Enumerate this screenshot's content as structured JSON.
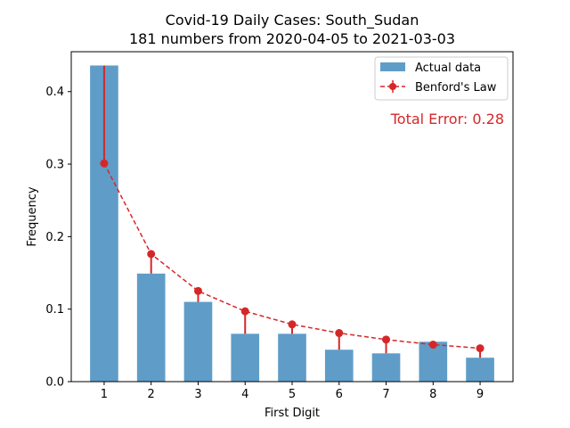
{
  "chart_data": {
    "type": "bar",
    "title_line1": "Covid-19 Daily Cases: South_Sudan",
    "title_line2": "181 numbers from 2020-04-05 to 2021-03-03",
    "xlabel": "First Digit",
    "ylabel": "Frequency",
    "categories": [
      "1",
      "2",
      "3",
      "4",
      "5",
      "6",
      "7",
      "8",
      "9"
    ],
    "series": [
      {
        "name": "Actual data",
        "type": "bar",
        "color": "#5f9dc8",
        "values": [
          0.436,
          0.149,
          0.11,
          0.066,
          0.066,
          0.044,
          0.039,
          0.055,
          0.033
        ]
      },
      {
        "name": "Benford's Law",
        "type": "line",
        "color": "#d62728",
        "values": [
          0.301,
          0.176,
          0.125,
          0.097,
          0.079,
          0.067,
          0.058,
          0.051,
          0.046
        ]
      }
    ],
    "ylim": [
      0,
      0.455
    ],
    "yticks": [
      0.0,
      0.1,
      0.2,
      0.3,
      0.4
    ],
    "ytick_labels": [
      "0.0",
      "0.1",
      "0.2",
      "0.3",
      "0.4"
    ],
    "legend": {
      "position": "top-right",
      "labels": [
        "Actual data",
        "Benford's Law"
      ]
    },
    "annotation": {
      "text": "Total Error: 0.28",
      "color": "#d62728",
      "position": "top-right"
    },
    "grid": false
  }
}
